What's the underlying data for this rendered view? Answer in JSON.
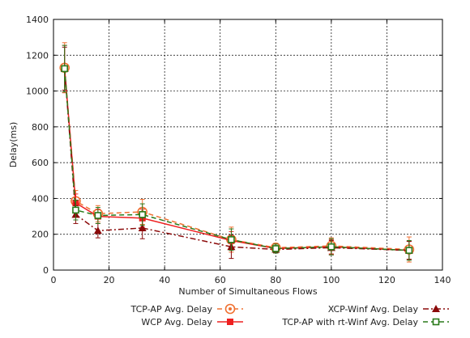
{
  "chart_data": {
    "type": "line",
    "title": "",
    "xlabel": "Number of Simultaneous Flows",
    "ylabel": "Delay(ms)",
    "xlim": [
      0,
      140
    ],
    "ylim": [
      0,
      1400
    ],
    "xticks": [
      0,
      20,
      40,
      60,
      80,
      100,
      120,
      140
    ],
    "yticks": [
      0,
      200,
      400,
      600,
      800,
      1000,
      1200,
      1400
    ],
    "grid": true,
    "legend_position": "bottom",
    "x": [
      4,
      8,
      16,
      32,
      64,
      80,
      100,
      128
    ],
    "series": [
      {
        "name": "TCP-AP Avg. Delay",
        "color": "#f07030",
        "style": "dashed",
        "marker": "circle-open",
        "values": [
          1130,
          385,
          315,
          325,
          170,
          125,
          135,
          115
        ],
        "err": [
          140,
          60,
          45,
          70,
          70,
          25,
          45,
          70
        ]
      },
      {
        "name": "WCP Avg. Delay",
        "color": "#ee2020",
        "style": "solid",
        "marker": "square-filled",
        "values": [
          1125,
          375,
          300,
          290,
          165,
          120,
          130,
          110
        ],
        "err": [
          130,
          50,
          40,
          50,
          50,
          25,
          40,
          50
        ]
      },
      {
        "name": "XCP-Winf Avg. Delay",
        "color": "#8b0a0a",
        "style": "dashdot",
        "marker": "triangle-filled",
        "values": [
          1125,
          310,
          220,
          235,
          130,
          115,
          125,
          110
        ],
        "err": [
          120,
          50,
          40,
          60,
          65,
          20,
          40,
          50
        ]
      },
      {
        "name": "TCP-AP with rt-Winf Avg. Delay",
        "color": "#2a7a1a",
        "style": "dashed",
        "marker": "square-open",
        "values": [
          1125,
          335,
          305,
          310,
          170,
          120,
          130,
          110
        ],
        "err": [
          130,
          55,
          45,
          60,
          60,
          25,
          45,
          55
        ]
      }
    ]
  }
}
